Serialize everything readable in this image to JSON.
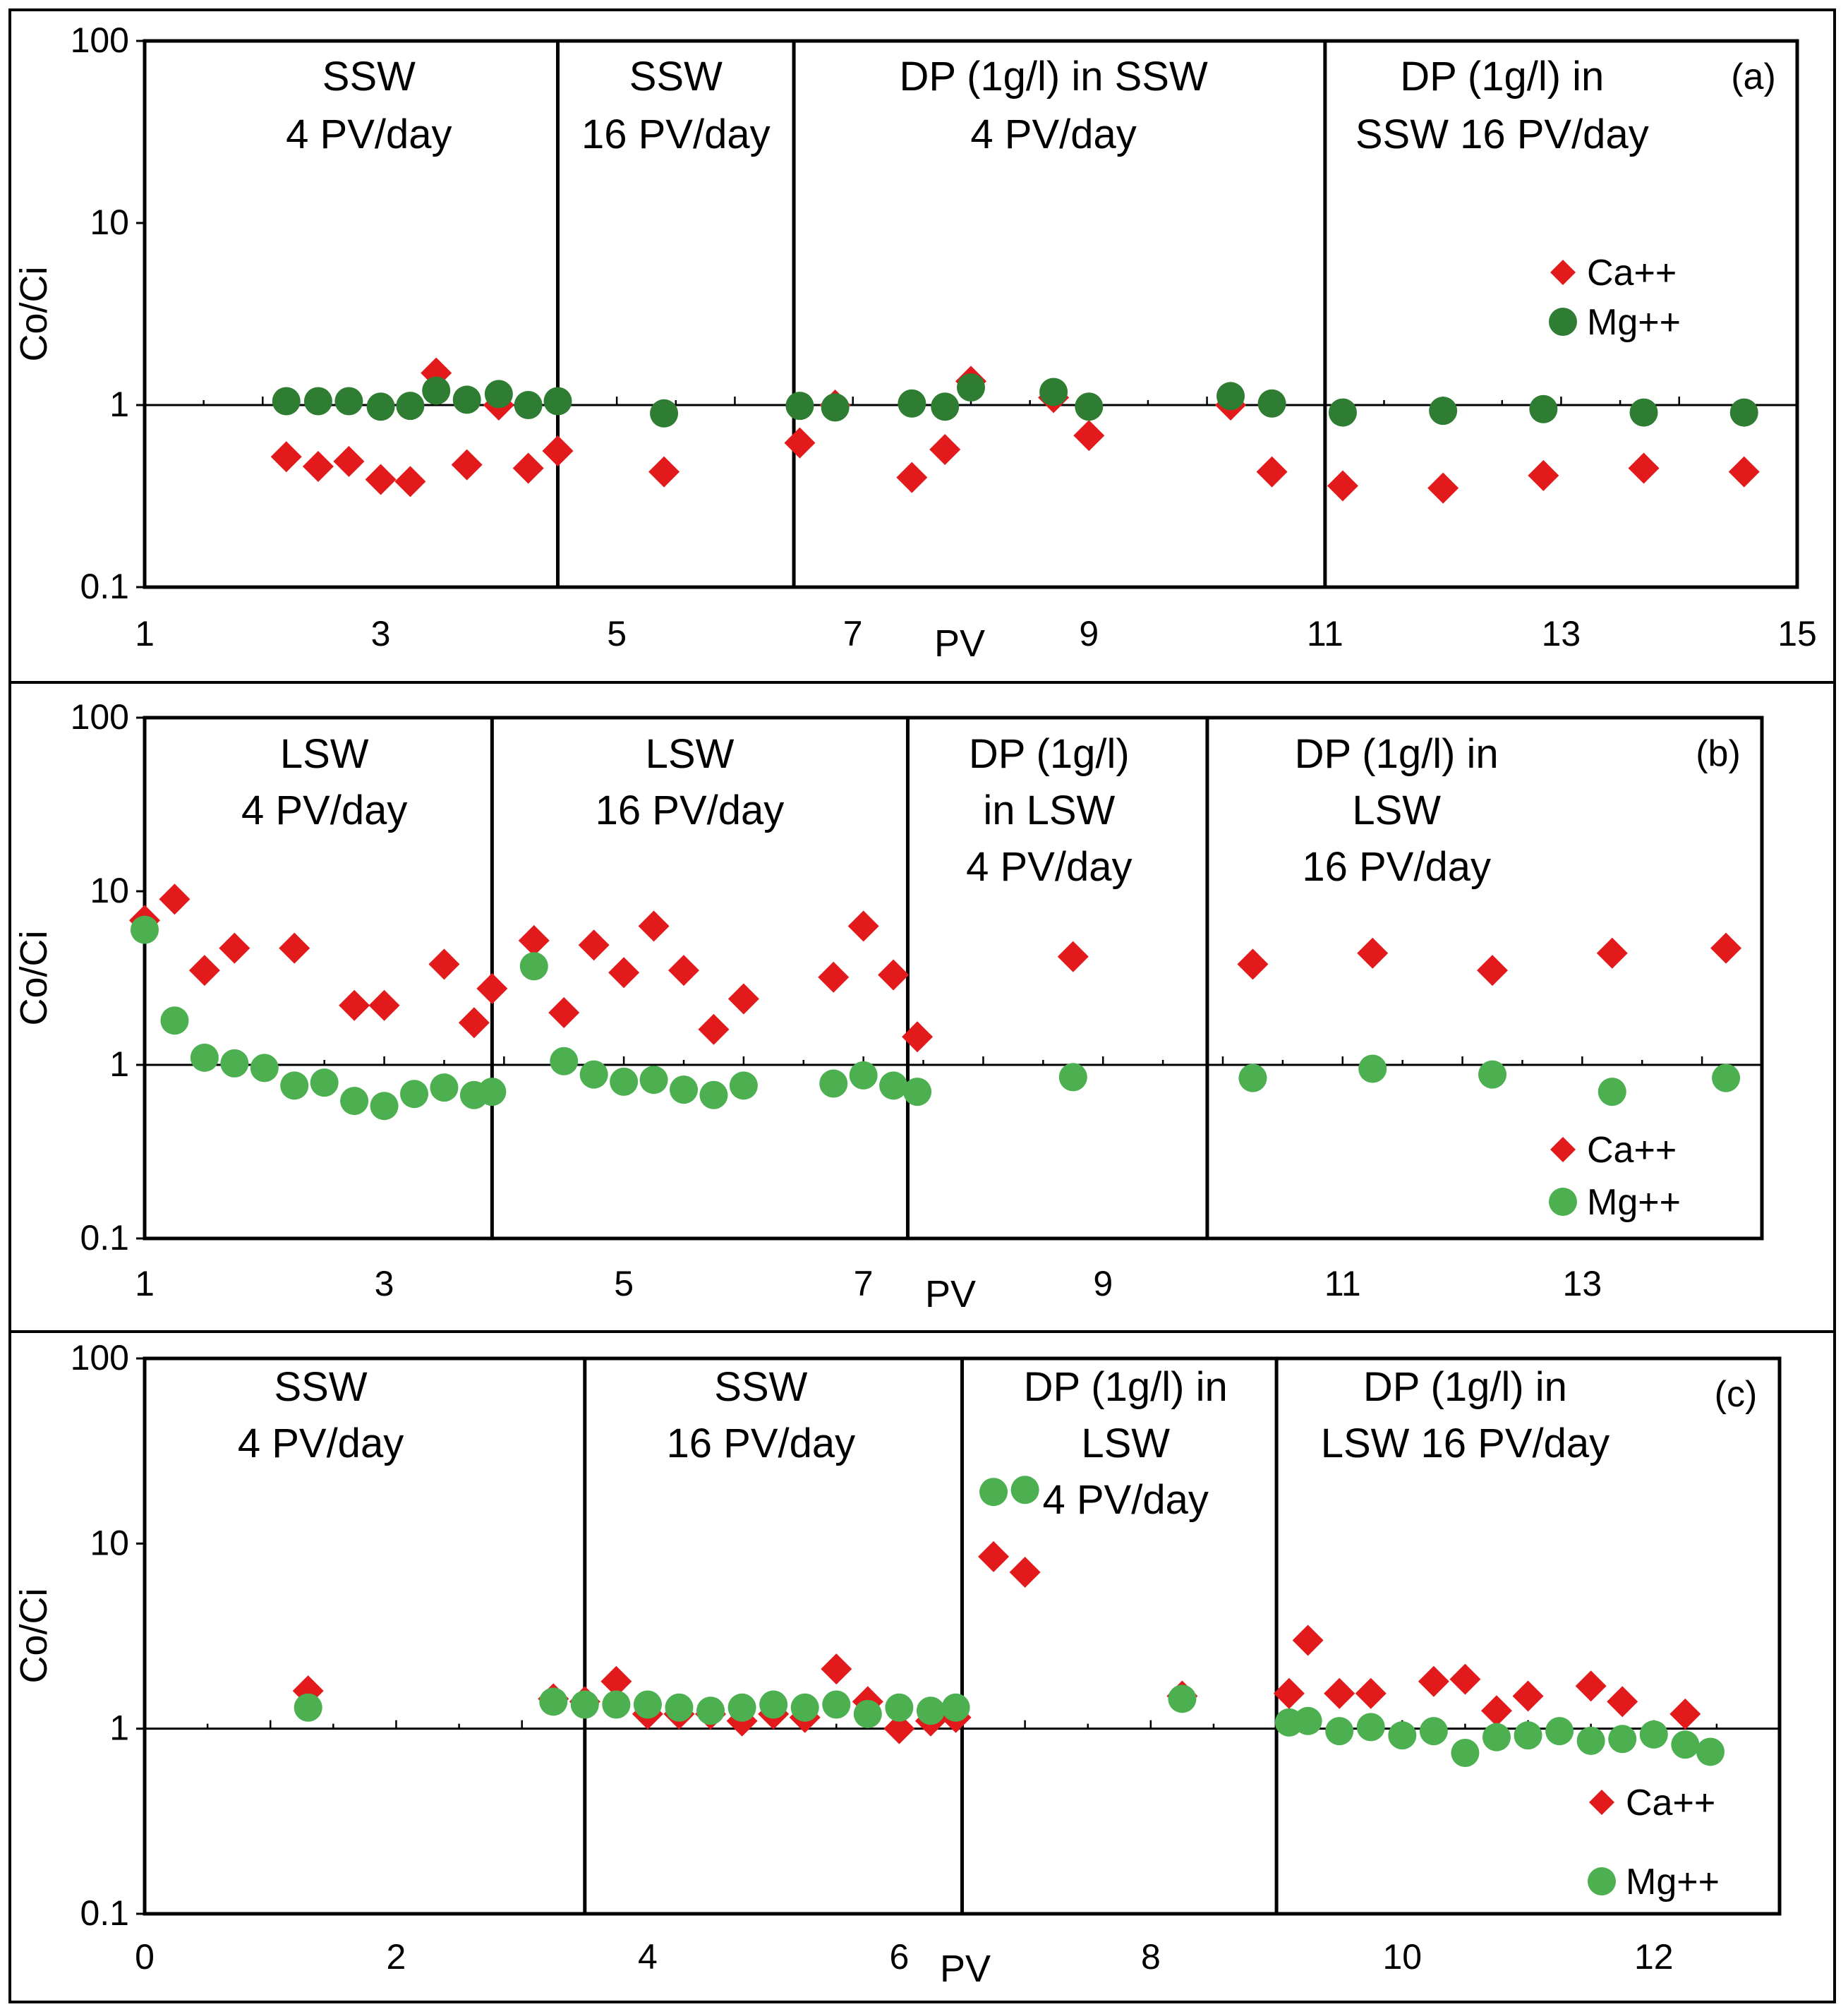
{
  "colors": {
    "ca": "#e31a1c",
    "mg_dark": "#2e7d32",
    "mg_light": "#4caf50",
    "axis": "#000000"
  },
  "chart_data": [
    {
      "type": "scatter",
      "panel_label": "(a)",
      "ylabel": "Co/Ci",
      "xlabel": "PV",
      "yscale": "log",
      "ylim": [
        0.1,
        100
      ],
      "xlim": [
        1,
        15
      ],
      "xticks": [
        "1",
        "3",
        "5",
        "7",
        "9",
        "11",
        "13",
        "15"
      ],
      "xtick_values": [
        1,
        3,
        5,
        7,
        9,
        11,
        13,
        15
      ],
      "yticks": [
        "0.1",
        "1",
        "10",
        "100"
      ],
      "dividers": [
        4.5,
        6.5,
        11.0
      ],
      "regions": [
        {
          "lines": [
            "SSW",
            "4 PV/day"
          ],
          "center": 2.9
        },
        {
          "lines": [
            "SSW",
            "16 PV/day"
          ],
          "center": 5.5
        },
        {
          "lines": [
            "DP (1g/l) in SSW",
            "4 PV/day"
          ],
          "center": 8.7
        },
        {
          "lines": [
            "DP (1g/l) in",
            "SSW 16 PV/day"
          ],
          "center": 12.5
        }
      ],
      "legend": {
        "position": "right-middle",
        "entries": [
          "Ca++",
          "Mg++"
        ]
      },
      "series": [
        {
          "name": "Ca++",
          "marker": "diamond",
          "color": "#e31a1c",
          "x": [
            2.2,
            2.47,
            2.73,
            3.0,
            3.25,
            3.47,
            3.73,
            4.0,
            4.25,
            4.5,
            5.4,
            6.55,
            6.85,
            7.5,
            7.78,
            8.0,
            8.7,
            9.0,
            10.2,
            10.55,
            11.15,
            12.0,
            12.85,
            13.7,
            14.55
          ],
          "y": [
            0.52,
            0.46,
            0.49,
            0.39,
            0.38,
            1.5,
            0.47,
            1.0,
            0.45,
            0.56,
            0.43,
            0.62,
            1.0,
            0.4,
            0.57,
            1.35,
            1.1,
            0.68,
            1.0,
            0.43,
            0.36,
            0.35,
            0.41,
            0.45,
            0.43
          ]
        },
        {
          "name": "Mg++",
          "marker": "circle",
          "color": "#2e7d32",
          "x": [
            2.2,
            2.47,
            2.73,
            3.0,
            3.25,
            3.47,
            3.73,
            4.0,
            4.25,
            4.5,
            5.4,
            6.55,
            6.85,
            7.5,
            7.78,
            8.0,
            8.7,
            9.0,
            10.2,
            10.55,
            11.15,
            12.0,
            12.85,
            13.7,
            14.55
          ],
          "y": [
            1.05,
            1.05,
            1.05,
            0.98,
            0.99,
            1.2,
            1.07,
            1.15,
            1.0,
            1.05,
            0.9,
            0.99,
            0.97,
            1.02,
            0.98,
            1.25,
            1.18,
            0.98,
            1.12,
            1.02,
            0.91,
            0.93,
            0.95,
            0.91,
            0.91
          ]
        }
      ]
    },
    {
      "type": "scatter",
      "panel_label": "(b)",
      "ylabel": "Co/Ci",
      "xlabel": "PV",
      "yscale": "log",
      "ylim": [
        0.1,
        100
      ],
      "xlim": [
        1,
        14.5
      ],
      "xticks": [
        "1",
        "3",
        "5",
        "7",
        "9",
        "11",
        "13"
      ],
      "xtick_values": [
        1,
        3,
        5,
        7,
        9,
        11,
        13
      ],
      "yticks": [
        "0.1",
        "1",
        "10",
        "100"
      ],
      "dividers": [
        3.9,
        7.37,
        9.87
      ],
      "regions": [
        {
          "lines": [
            "LSW",
            "4 PV/day"
          ],
          "center": 2.5
        },
        {
          "lines": [
            "LSW",
            "16 PV/day"
          ],
          "center": 5.55
        },
        {
          "lines": [
            "DP (1g/l)",
            "in LSW",
            "4 PV/day"
          ],
          "center": 8.55
        },
        {
          "lines": [
            "DP (1g/l) in",
            "LSW",
            "16 PV/day"
          ],
          "center": 11.45
        }
      ],
      "legend": {
        "position": "bottom-right",
        "entries": [
          "Ca++",
          "Mg++"
        ]
      },
      "series": [
        {
          "name": "Ca++",
          "marker": "diamond",
          "color": "#e31a1c",
          "x": [
            1.0,
            1.25,
            1.5,
            1.75,
            2.25,
            2.75,
            3.0,
            3.5,
            3.75,
            3.9,
            4.25,
            4.5,
            4.75,
            5.0,
            5.25,
            5.5,
            5.75,
            6.0,
            6.75,
            7.0,
            7.25,
            7.45,
            8.75,
            10.25,
            11.25,
            12.25,
            13.25,
            14.2
          ],
          "y": [
            6.8,
            9.0,
            3.5,
            4.7,
            4.7,
            2.2,
            2.2,
            3.8,
            1.75,
            2.75,
            5.2,
            2.0,
            4.9,
            3.4,
            6.3,
            3.5,
            1.6,
            2.4,
            3.2,
            6.3,
            3.3,
            1.45,
            4.2,
            3.8,
            4.4,
            3.5,
            4.4,
            4.7
          ]
        },
        {
          "name": "Mg++",
          "marker": "circle",
          "color": "#4caf50",
          "x": [
            1.0,
            1.25,
            1.5,
            1.75,
            2.0,
            2.25,
            2.5,
            2.75,
            3.0,
            3.25,
            3.5,
            3.75,
            3.9,
            4.25,
            4.5,
            4.75,
            5.0,
            5.25,
            5.5,
            5.75,
            6.0,
            6.75,
            7.0,
            7.25,
            7.45,
            8.75,
            10.25,
            11.25,
            12.25,
            13.25,
            14.2
          ],
          "y": [
            6.0,
            1.8,
            1.1,
            1.02,
            0.96,
            0.76,
            0.79,
            0.62,
            0.58,
            0.68,
            0.74,
            0.67,
            0.7,
            3.7,
            1.05,
            0.88,
            0.8,
            0.82,
            0.72,
            0.67,
            0.76,
            0.78,
            0.87,
            0.76,
            0.7,
            0.85,
            0.84,
            0.95,
            0.88,
            0.7,
            0.84
          ]
        }
      ]
    },
    {
      "type": "scatter",
      "panel_label": "(c)",
      "ylabel": "Co/Ci",
      "xlabel": "PV",
      "yscale": "log",
      "ylim": [
        0.1,
        100
      ],
      "xlim": [
        0,
        13
      ],
      "xticks": [
        "0",
        "2",
        "4",
        "6",
        "8",
        "10",
        "12"
      ],
      "xtick_values": [
        0,
        2,
        4,
        6,
        8,
        10,
        12
      ],
      "yticks": [
        "0.1",
        "1",
        "10",
        "100"
      ],
      "dividers": [
        3.5,
        6.5,
        9.0
      ],
      "regions": [
        {
          "lines": [
            "SSW",
            "4 PV/day"
          ],
          "center": 1.4
        },
        {
          "lines": [
            "SSW",
            "16 PV/day"
          ],
          "center": 4.9
        },
        {
          "lines": [
            "DP (1g/l) in",
            "LSW",
            "4 PV/day"
          ],
          "center": 7.8
        },
        {
          "lines": [
            "DP (1g/l) in",
            "LSW 16 PV/day"
          ],
          "center": 10.5
        }
      ],
      "legend": {
        "position": "bottom-right",
        "entries": [
          "Ca++",
          "Mg++"
        ]
      },
      "series": [
        {
          "name": "Ca++",
          "marker": "diamond",
          "color": "#e31a1c",
          "x": [
            1.3,
            3.25,
            3.5,
            3.75,
            4.0,
            4.25,
            4.5,
            4.75,
            5.0,
            5.25,
            5.5,
            5.75,
            6.0,
            6.25,
            6.45,
            6.75,
            7.0,
            8.25,
            9.1,
            9.25,
            9.5,
            9.75,
            10.25,
            10.5,
            10.75,
            11.0,
            11.5,
            11.75,
            12.25
          ],
          "y": [
            1.6,
            1.45,
            1.4,
            1.8,
            1.2,
            1.2,
            1.2,
            1.1,
            1.2,
            1.15,
            2.1,
            1.4,
            1.0,
            1.1,
            1.15,
            8.5,
            7.0,
            1.5,
            1.55,
            3.0,
            1.55,
            1.55,
            1.8,
            1.85,
            1.25,
            1.5,
            1.7,
            1.4,
            1.2
          ]
        },
        {
          "name": "Mg++",
          "marker": "circle",
          "color": "#4caf50",
          "x": [
            1.3,
            3.25,
            3.5,
            3.75,
            4.0,
            4.25,
            4.5,
            4.75,
            5.0,
            5.25,
            5.5,
            5.75,
            6.0,
            6.25,
            6.45,
            6.75,
            7.0,
            8.25,
            9.1,
            9.25,
            9.5,
            9.75,
            10.0,
            10.25,
            10.5,
            10.75,
            11.0,
            11.25,
            11.5,
            11.75,
            12.0,
            12.25,
            12.45
          ],
          "y": [
            1.3,
            1.4,
            1.35,
            1.35,
            1.35,
            1.3,
            1.25,
            1.3,
            1.35,
            1.3,
            1.35,
            1.2,
            1.3,
            1.25,
            1.3,
            19.0,
            19.5,
            1.45,
            1.08,
            1.1,
            0.97,
            1.02,
            0.92,
            0.97,
            0.74,
            0.9,
            0.92,
            0.97,
            0.86,
            0.88,
            0.93,
            0.82,
            0.75
          ]
        }
      ]
    }
  ]
}
